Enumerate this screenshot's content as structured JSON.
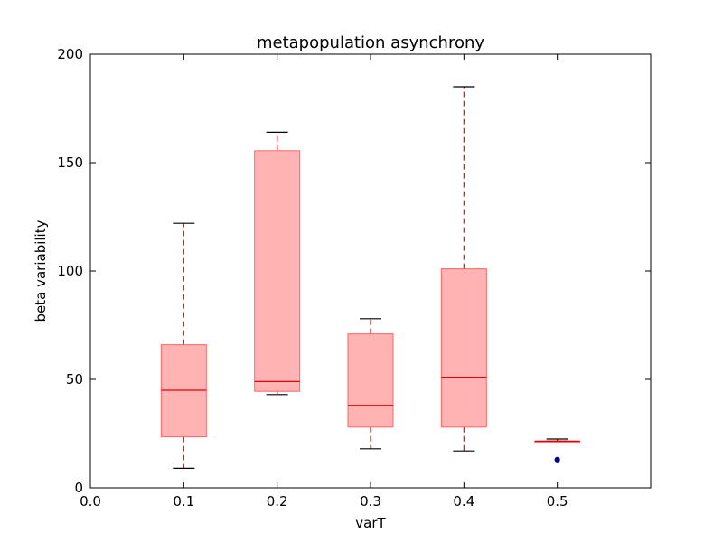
{
  "chart_data": {
    "type": "boxplot",
    "title": "metapopulation asynchrony",
    "xlabel": "varT",
    "ylabel": "beta variability",
    "xlim": [
      0.0,
      0.6
    ],
    "ylim": [
      0,
      200
    ],
    "x_ticks": [
      0.0,
      0.1,
      0.2,
      0.3,
      0.4,
      0.5
    ],
    "x_tick_labels": [
      "0.0",
      "0.1",
      "0.2",
      "0.3",
      "0.4",
      "0.5"
    ],
    "y_ticks": [
      0,
      50,
      100,
      150,
      200
    ],
    "y_tick_labels": [
      "0",
      "50",
      "100",
      "150",
      "200"
    ],
    "grid": false,
    "box_color": "#ff9999",
    "box_edge_color": "#ff6666",
    "median_color": "#ee0000",
    "whisker_color": "#ff0000",
    "cap_color": "#000000",
    "flier_color": "#000080",
    "boxes": [
      {
        "x": 0.1,
        "whisker_low": 9,
        "q1": 23.5,
        "median": 45,
        "q3": 66,
        "whisker_high": 122,
        "fliers": []
      },
      {
        "x": 0.2,
        "whisker_low": 43,
        "q1": 44.5,
        "median": 49,
        "q3": 155.5,
        "whisker_high": 164,
        "fliers": []
      },
      {
        "x": 0.3,
        "whisker_low": 18,
        "q1": 28,
        "median": 38,
        "q3": 71,
        "whisker_high": 78,
        "fliers": []
      },
      {
        "x": 0.4,
        "whisker_low": 17,
        "q1": 28,
        "median": 51,
        "q3": 101,
        "whisker_high": 185,
        "fliers": []
      },
      {
        "x": 0.5,
        "whisker_low": 21.5,
        "q1": 21.5,
        "median": 21.5,
        "q3": 21.5,
        "whisker_high": 22.5,
        "fliers": [
          13
        ]
      }
    ]
  }
}
